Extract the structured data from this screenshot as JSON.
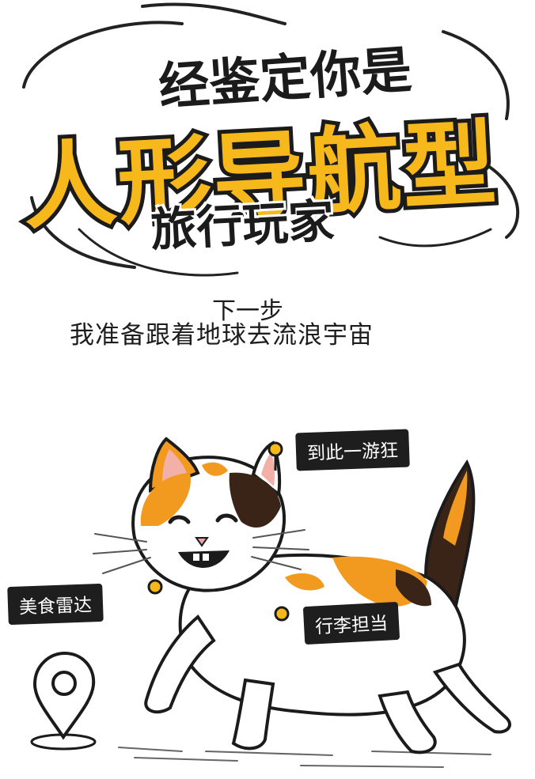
{
  "headline": {
    "line1": "经鉴定你是",
    "line2": "人形导航型",
    "line3": "旅行玩家"
  },
  "subtitle": {
    "line1": "下一步",
    "line2": "我准备跟着地球去流浪宇宙"
  },
  "tags": {
    "top_right": "到此一游狂",
    "left": "美食雷达",
    "right": "行李担当"
  },
  "colors": {
    "accent": "#f7b81c",
    "ink": "#1b1b1b",
    "cat_patch_orange": "#f29a1f",
    "cat_patch_dark": "#3a2417"
  },
  "icons": [
    "location-pin-icon",
    "paw-icon"
  ]
}
